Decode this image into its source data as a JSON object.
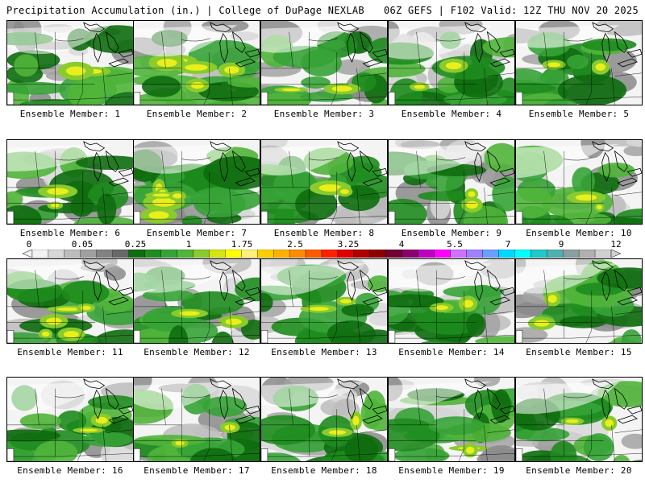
{
  "header": {
    "title": "Precipitation Accumulation (in.) | College of DuPage NEXLAB",
    "run_info": "06Z GEFS | F102 Valid: 12Z THU NOV 20 2025"
  },
  "colorbar": {
    "ticks": [
      "0",
      "0.05",
      "0.25",
      "1",
      "1.75",
      "2.5",
      "3.25",
      "4",
      "5.5",
      "7",
      "9",
      "12"
    ],
    "colors": [
      "#f2f2f2",
      "#d7d7d7",
      "#bdbdbd",
      "#a0a0a0",
      "#828282",
      "#686868",
      "#0e6d0e",
      "#1e8c1e",
      "#36a336",
      "#50b53a",
      "#8acb2e",
      "#d6e414",
      "#ffff00",
      "#fff07a",
      "#ffd000",
      "#ffb000",
      "#ff8c00",
      "#ff5a00",
      "#ff2000",
      "#e00000",
      "#b00000",
      "#8c0000",
      "#700030",
      "#8a0070",
      "#c000c0",
      "#ff00ff",
      "#d070ff",
      "#a080ff",
      "#6aa0ff",
      "#00d8ff",
      "#00ffff",
      "#20c8c8",
      "#50b0b0",
      "#8aa0a0",
      "#b0b0b0",
      "#d0d0d0"
    ]
  },
  "panels": [
    {
      "label": "Ensemble Member: 1"
    },
    {
      "label": "Ensemble Member: 2"
    },
    {
      "label": "Ensemble Member: 3"
    },
    {
      "label": "Ensemble Member: 4"
    },
    {
      "label": "Ensemble Member: 5"
    },
    {
      "label": "Ensemble Member: 6"
    },
    {
      "label": "Ensemble Member: 7"
    },
    {
      "label": "Ensemble Member: 8"
    },
    {
      "label": "Ensemble Member: 9"
    },
    {
      "label": "Ensemble Member: 10"
    },
    {
      "label": "Ensemble Member: 11"
    },
    {
      "label": "Ensemble Member: 12"
    },
    {
      "label": "Ensemble Member: 13"
    },
    {
      "label": "Ensemble Member: 14"
    },
    {
      "label": "Ensemble Member: 15"
    },
    {
      "label": "Ensemble Member: 16"
    },
    {
      "label": "Ensemble Member: 17"
    },
    {
      "label": "Ensemble Member: 18"
    },
    {
      "label": "Ensemble Member: 19"
    },
    {
      "label": "Ensemble Member: 20"
    }
  ]
}
